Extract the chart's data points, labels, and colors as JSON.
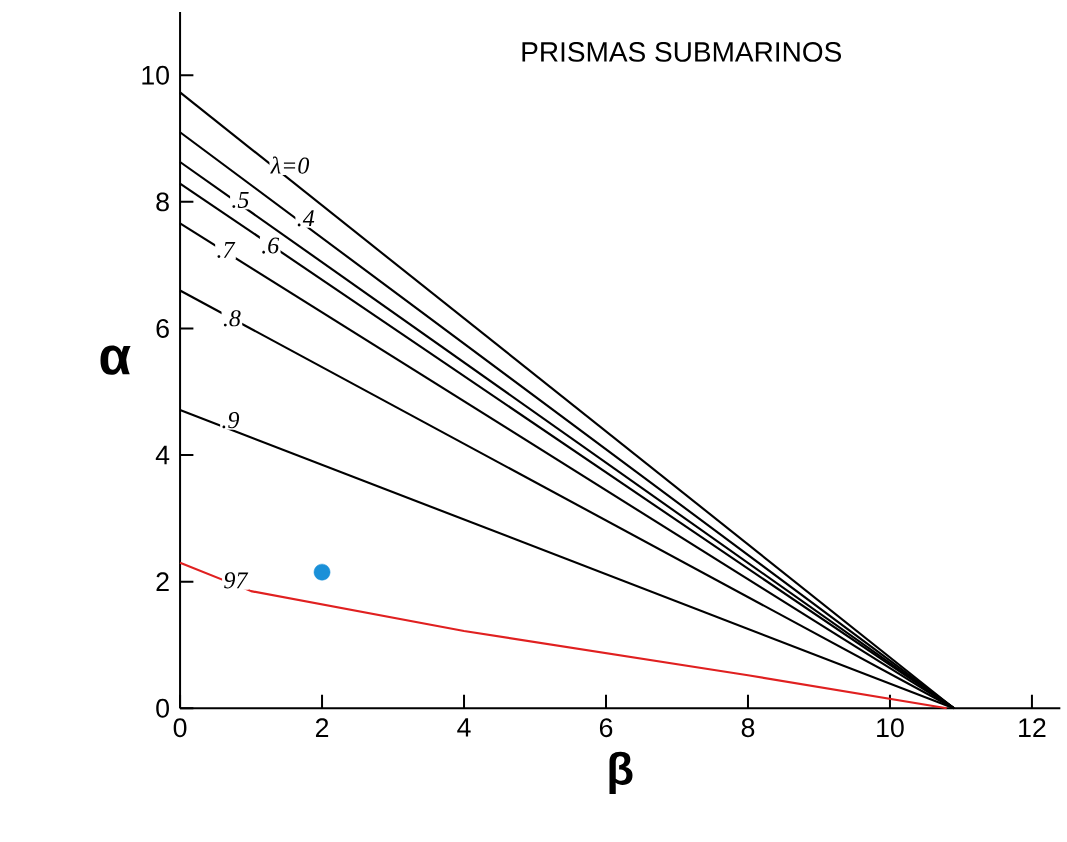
{
  "chart_data": {
    "type": "line",
    "title": "PRISMAS SUBMARINOS",
    "xlabel": "β",
    "ylabel": "α",
    "xlim": [
      0,
      12.4
    ],
    "ylim": [
      0,
      11
    ],
    "xticks": [
      0,
      2,
      4,
      6,
      8,
      10,
      12
    ],
    "yticks": [
      0,
      2,
      4,
      6,
      8,
      10
    ],
    "grid": false,
    "series": [
      {
        "color": "#000000",
        "x": [
          0,
          10.9
        ],
        "values": [
          9.73,
          0
        ]
      },
      {
        "color": "#000000",
        "x": [
          0,
          10.9
        ],
        "values": [
          9.1,
          0
        ]
      },
      {
        "color": "#000000",
        "x": [
          0,
          10.9
        ],
        "values": [
          8.63,
          0
        ]
      },
      {
        "color": "#000000",
        "x": [
          0,
          10.9
        ],
        "values": [
          8.29,
          0
        ]
      },
      {
        "color": "#000000",
        "x": [
          0,
          10.9
        ],
        "values": [
          7.66,
          0
        ]
      },
      {
        "color": "#000000",
        "x": [
          0,
          10.9
        ],
        "values": [
          6.6,
          0
        ]
      },
      {
        "color": "#000000",
        "x": [
          0,
          10.9
        ],
        "values": [
          4.71,
          0
        ]
      },
      {
        "color": "#e02020",
        "x": [
          0,
          1,
          4,
          8,
          10.8
        ],
        "values": [
          2.3,
          1.85,
          1.22,
          0.52,
          0
        ]
      },
      {
        "type": "scatter",
        "color": "#1a90d8",
        "x": [
          2
        ],
        "values": [
          2.15
        ]
      }
    ],
    "annotations": [
      {
        "text": "λ=0",
        "x": 1.55,
        "y": 8.58
      },
      {
        "text": ".5",
        "x": 0.85,
        "y": 8.03
      },
      {
        "text": ".4",
        "x": 1.77,
        "y": 7.74
      },
      {
        "text": ".7",
        "x": 0.64,
        "y": 7.24
      },
      {
        "text": ".6",
        "x": 1.27,
        "y": 7.31
      },
      {
        "text": ".8",
        "x": 0.73,
        "y": 6.16
      },
      {
        "text": ".9",
        "x": 0.71,
        "y": 4.55
      },
      {
        "text": "97",
        "x": 0.78,
        "y": 2.02
      }
    ]
  }
}
